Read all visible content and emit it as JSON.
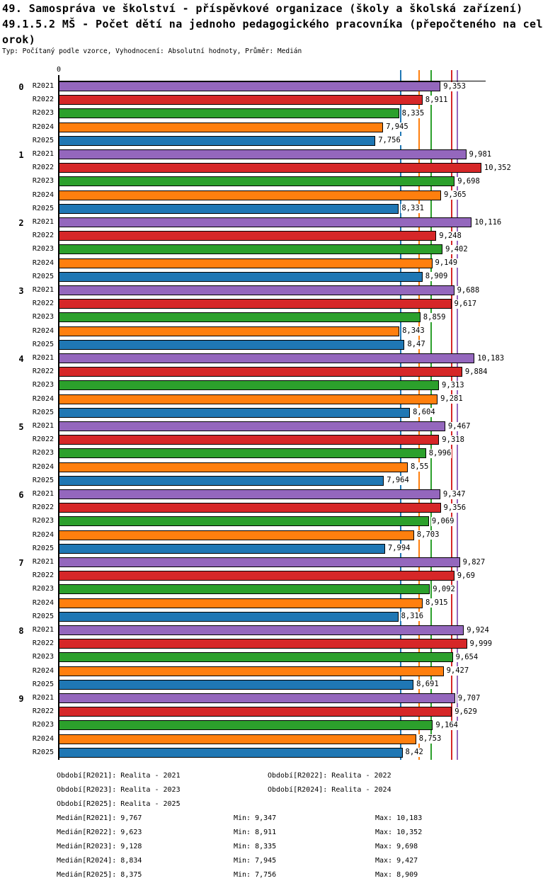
{
  "header": {
    "title_line1": "49. Samospráva ve školství - příspěvkové organizace (školy a školská zařízení)",
    "title_line2": "49.1.5.2 MŠ - Počet dětí na jednoho pedagogického pracovníka (přepočteného na cel",
    "title_line3": "orok)",
    "subtitle": "Typ: Počítaný podle vzorce, Vyhodnocení: Absolutní hodnoty, Průměr: Medián"
  },
  "chart_data": {
    "type": "bar",
    "orientation": "horizontal",
    "axis": {
      "origin_label": "0",
      "xlim": [
        0,
        10.52
      ],
      "grid": false
    },
    "series_labels": [
      "R2021",
      "R2022",
      "R2023",
      "R2024",
      "R2025"
    ],
    "series_colors": [
      "#9467bd",
      "#d62728",
      "#2ca02c",
      "#ff7f0e",
      "#1f77b4"
    ],
    "groups": [
      {
        "label": "0",
        "values": [
          "9,353",
          "8,911",
          "8,335",
          "7,945",
          "7,756"
        ]
      },
      {
        "label": "1",
        "values": [
          "9,981",
          "10,352",
          "9,698",
          "9,365",
          "8,331"
        ]
      },
      {
        "label": "2",
        "values": [
          "10,116",
          "9,248",
          "9,402",
          "9,149",
          "8,909"
        ]
      },
      {
        "label": "3",
        "values": [
          "9,688",
          "9,617",
          "8,859",
          "8,343",
          "8,47"
        ]
      },
      {
        "label": "4",
        "values": [
          "10,183",
          "9,884",
          "9,313",
          "9,281",
          "8,604"
        ]
      },
      {
        "label": "5",
        "values": [
          "9,467",
          "9,318",
          "8,996",
          "8,55",
          "7,964"
        ]
      },
      {
        "label": "6",
        "values": [
          "9,347",
          "9,356",
          "9,069",
          "8,703",
          "7,994"
        ]
      },
      {
        "label": "7",
        "values": [
          "9,827",
          "9,69",
          "9,092",
          "8,915",
          "8,316"
        ]
      },
      {
        "label": "8",
        "values": [
          "9,924",
          "9,999",
          "9,654",
          "9,427",
          "8,691"
        ]
      },
      {
        "label": "9",
        "values": [
          "9,707",
          "9,629",
          "9,164",
          "8,753",
          "8,42"
        ]
      }
    ],
    "median_lines": [
      {
        "series": "R2021",
        "value": "9,767",
        "color": "#9467bd"
      },
      {
        "series": "R2022",
        "value": "9,623",
        "color": "#d62728"
      },
      {
        "series": "R2023",
        "value": "9,128",
        "color": "#2ca02c"
      },
      {
        "series": "R2024",
        "value": "8,834",
        "color": "#ff7f0e"
      },
      {
        "series": "R2025",
        "value": "8,375",
        "color": "#1f77b4"
      }
    ],
    "legend": [
      "Období[R2021]: Realita - 2021",
      "Období[R2022]: Realita - 2022",
      "Období[R2023]: Realita - 2023",
      "Období[R2024]: Realita - 2024",
      "Období[R2025]: Realita - 2025"
    ],
    "stats": [
      {
        "median": "Medián[R2021]: 9,767",
        "min": "Min: 9,347",
        "max": "Max: 10,183"
      },
      {
        "median": "Medián[R2022]: 9,623",
        "min": "Min: 8,911",
        "max": "Max: 10,352"
      },
      {
        "median": "Medián[R2023]: 9,128",
        "min": "Min: 8,335",
        "max": "Max: 9,698"
      },
      {
        "median": "Medián[R2024]: 8,834",
        "min": "Min: 7,945",
        "max": "Max: 9,427"
      },
      {
        "median": "Medián[R2025]: 8,375",
        "min": "Min: 7,756",
        "max": "Max: 8,909"
      }
    ]
  }
}
